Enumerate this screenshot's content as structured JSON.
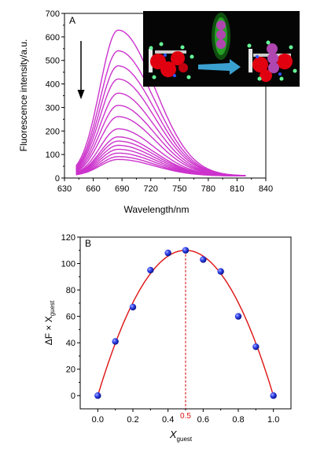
{
  "chart_data": [
    {
      "panel": "A",
      "type": "line",
      "xlabel": "Wavelength/nm",
      "ylabel": "Fluorescence intensity/a.u.",
      "xlim": [
        630,
        840
      ],
      "ylim": [
        0,
        700
      ],
      "xticks": [
        630,
        660,
        690,
        720,
        750,
        780,
        810,
        840
      ],
      "yticks": [
        0,
        100,
        200,
        300,
        400,
        500,
        600,
        700
      ],
      "peak_x": 686,
      "x_start": 642,
      "x_end": 820,
      "peak_values": [
        620,
        532,
        468,
        412,
        352,
        300,
        252,
        200,
        166,
        148,
        130,
        113,
        97,
        82,
        70
      ],
      "arrow": "down",
      "line_color": "#cc33cc",
      "inset": {
        "background": "#050505",
        "guest_color": "#b046b0",
        "host_color": "#e00010",
        "arrow_color": "#3aa0d0",
        "glow_color": "#33ff33"
      }
    },
    {
      "panel": "B",
      "type": "scatter",
      "xlabel_main": "X",
      "xlabel_sub": "guest",
      "ylabel_prefix": "ΔF × X",
      "ylabel_sub": "guest",
      "xlim": [
        -0.1,
        1.1
      ],
      "ylim": [
        -10,
        120
      ],
      "xticks": [
        "0.0",
        "0.2",
        "0.4",
        "0.6",
        "0.8",
        "1.0"
      ],
      "yticks": [
        0,
        20,
        40,
        60,
        80,
        100,
        120
      ],
      "x": [
        0.0,
        0.1,
        0.2,
        0.3,
        0.4,
        0.5,
        0.6,
        0.7,
        0.8,
        0.9,
        1.0
      ],
      "y": [
        0,
        41,
        67,
        95,
        108,
        110,
        103,
        94,
        60,
        37,
        0
      ],
      "fit_peak_x": 0.5,
      "fit_peak_y": 110,
      "marker": "0.5",
      "point_color": "#2233dd",
      "fit_color": "#dd1111"
    }
  ]
}
